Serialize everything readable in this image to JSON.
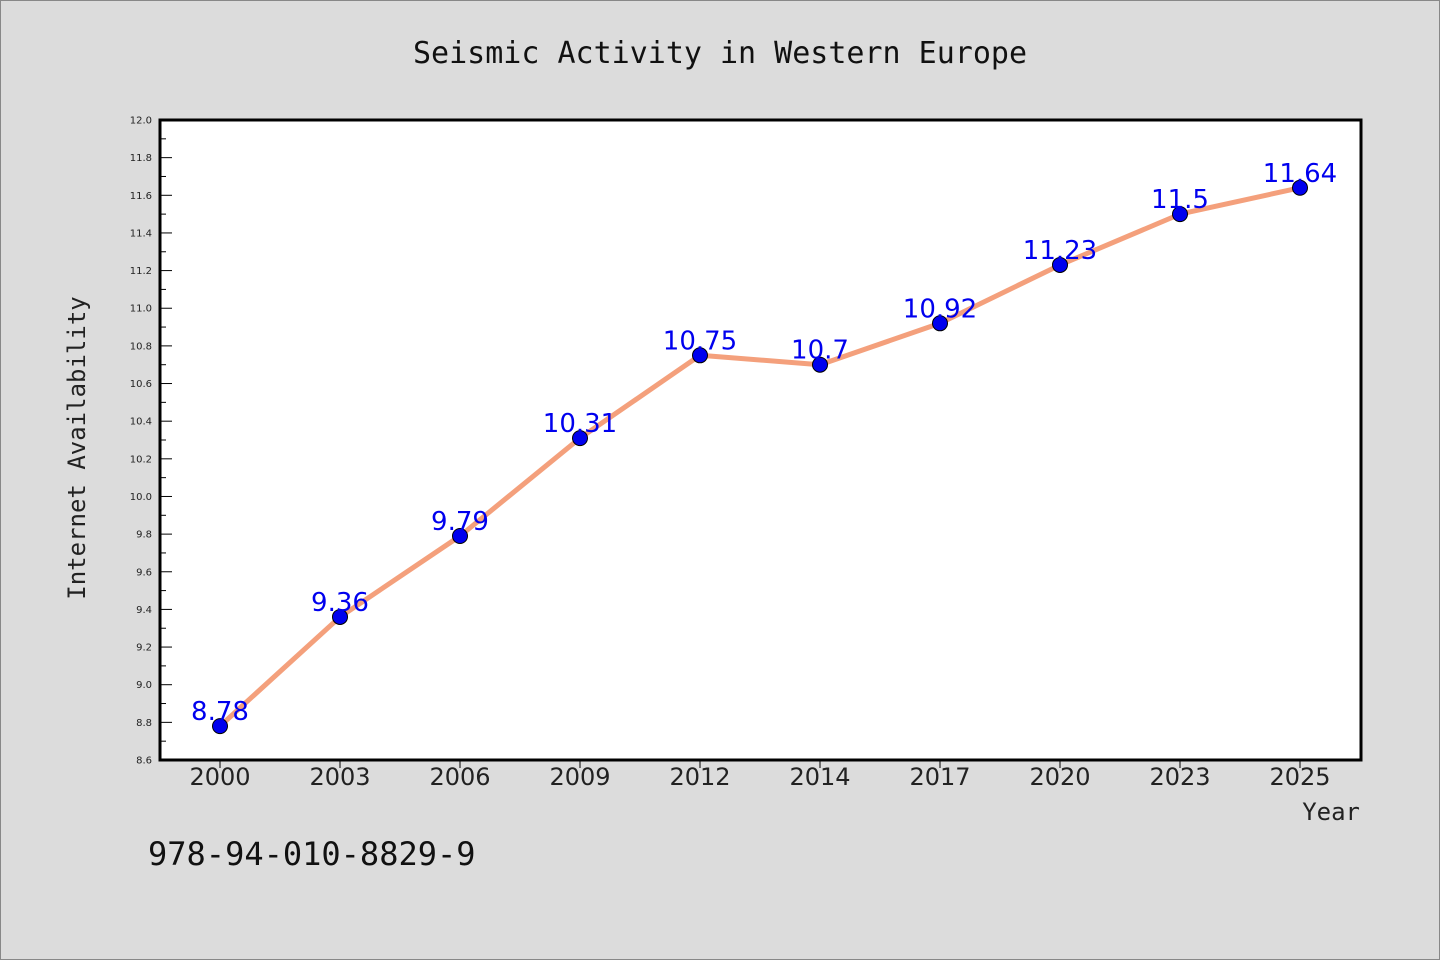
{
  "chart_data": {
    "type": "line",
    "title": "Seismic Activity in Western Europe",
    "xlabel": "Year",
    "ylabel": "Internet Availability",
    "categories": [
      "2000",
      "2003",
      "2006",
      "2009",
      "2012",
      "2014",
      "2017",
      "2020",
      "2023",
      "2025"
    ],
    "series": [
      {
        "values": [
          8.78,
          9.36,
          9.79,
          10.31,
          10.75,
          10.7,
          10.92,
          11.23,
          11.5,
          11.64
        ],
        "labels": [
          "8.78",
          "9.36",
          "9.79",
          "10.31",
          "10.75",
          "10.7",
          "10.92",
          "11.23",
          "11.5",
          "11.64"
        ],
        "line_color": "#f4a07c",
        "marker_color": "#0000ee"
      }
    ],
    "ylim": [
      8.6,
      12.0
    ],
    "yticks": [
      "8.6",
      "8.8",
      "9.0",
      "9.2",
      "9.4",
      "9.6",
      "9.8",
      "10.0",
      "10.2",
      "10.4",
      "10.6",
      "10.8",
      "11.0",
      "11.2",
      "11.4",
      "11.6",
      "11.8",
      "12.0"
    ],
    "grid": false,
    "legend": "none"
  },
  "footer": {
    "isbn": "978-94-010-8829-9"
  },
  "colors": {
    "background": "#dcdcdc",
    "plot_background": "#ffffff"
  }
}
